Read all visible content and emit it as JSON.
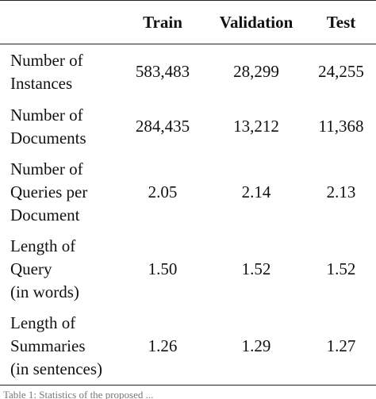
{
  "table": {
    "headers": [
      "",
      "Train",
      "Validation",
      "Test"
    ],
    "rows": [
      {
        "label": [
          "Number of",
          "Instances"
        ],
        "values": [
          "583,483",
          "28,299",
          "24,255"
        ]
      },
      {
        "label": [
          "Number of",
          "Documents"
        ],
        "values": [
          "284,435",
          "13,212",
          "11,368"
        ]
      },
      {
        "label": [
          "Number of",
          "Queries per",
          "Document"
        ],
        "values": [
          "2.05",
          "2.14",
          "2.13"
        ]
      },
      {
        "label": [
          "Length of",
          "Query",
          "(in words)"
        ],
        "values": [
          "1.50",
          "1.52",
          "1.52"
        ]
      },
      {
        "label": [
          "Length of",
          "Summaries",
          "(in sentences)"
        ],
        "values": [
          "1.26",
          "1.29",
          "1.27"
        ]
      }
    ]
  },
  "caption": "Table 1: Statistics of the proposed ..."
}
